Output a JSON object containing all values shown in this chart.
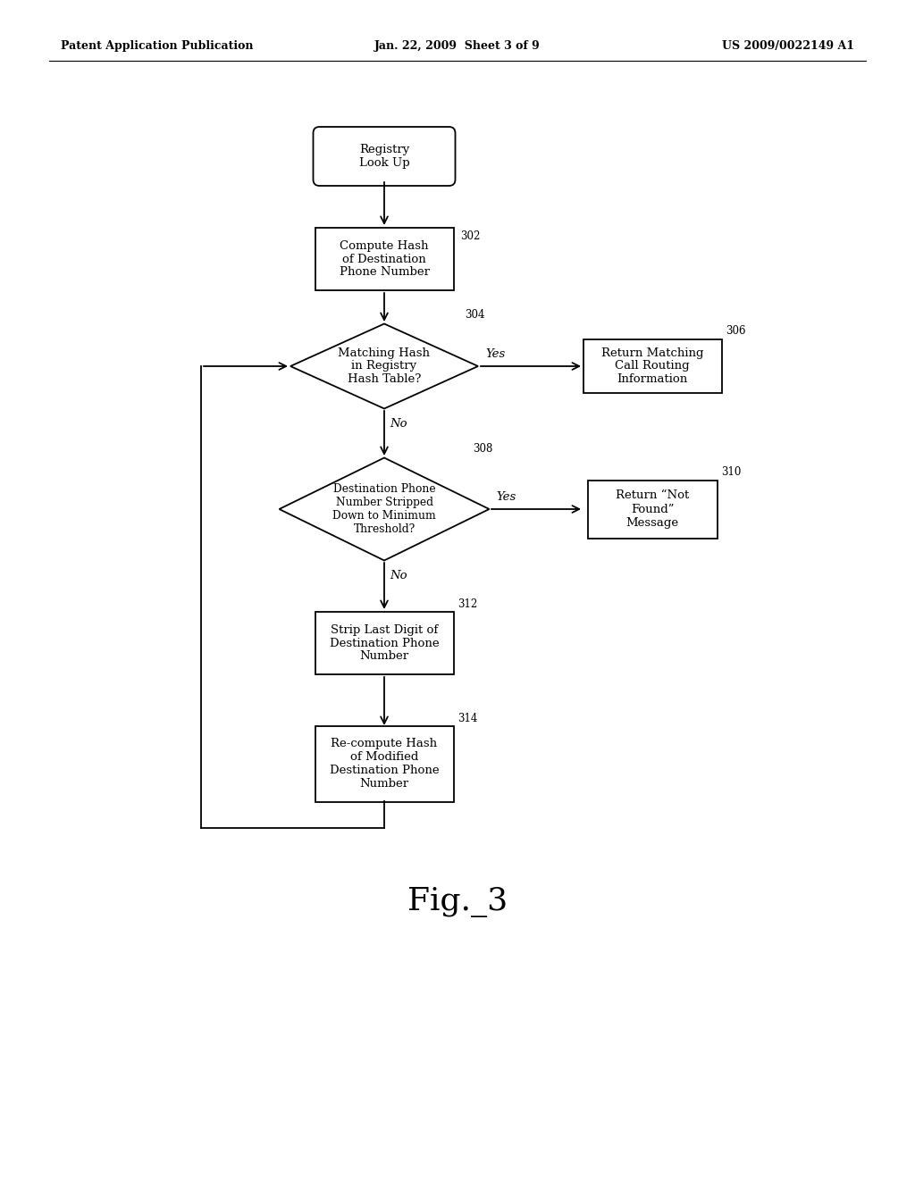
{
  "bg_color": "#ffffff",
  "header_left": "Patent Application Publication",
  "header_center": "Jan. 22, 2009  Sheet 3 of 9",
  "header_right": "US 2009/0022149 A1",
  "figure_label": "Fig._3",
  "line_color": "#000000",
  "text_color": "#000000",
  "node_bg": "#ffffff",
  "nodes": {
    "registry": {
      "label": "Registry\nLook Up",
      "type": "rounded_rect"
    },
    "compute_hash": {
      "label": "Compute Hash\nof Destination\nPhone Number",
      "type": "rect"
    },
    "matching_hash": {
      "label": "Matching Hash\nin Registry\nHash Table?",
      "type": "diamond"
    },
    "ret_match": {
      "label": "Return Matching\nCall Routing\nInformation",
      "type": "rect"
    },
    "dest_stripped": {
      "label": "Destination Phone\nNumber Stripped\nDown to Minimum\nThreshold?",
      "type": "diamond"
    },
    "ret_notfound": {
      "label": "Return “Not\nFound”\nMessage",
      "type": "rect"
    },
    "strip_last": {
      "label": "Strip Last Digit of\nDestination Phone\nNumber",
      "type": "rect"
    },
    "recompute": {
      "label": "Re-compute Hash\nof Modified\nDestination Phone\nNumber",
      "type": "rect"
    }
  }
}
